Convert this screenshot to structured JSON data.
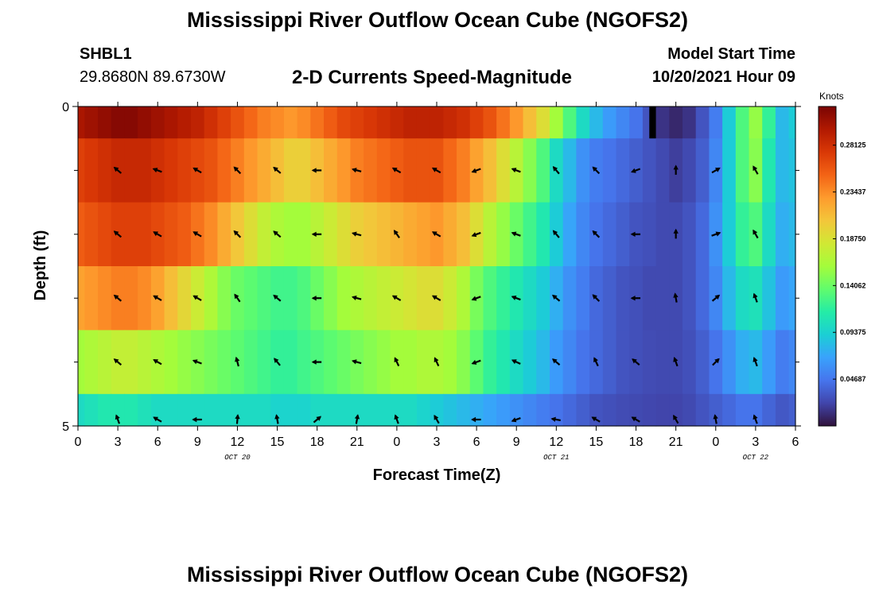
{
  "header": {
    "title": "Mississippi River Outflow Ocean Cube (NGOFS2)",
    "station_name": "SHBL1",
    "station_coords": "29.8680N  89.6730W",
    "subtitle": "2-D Currents Speed-Magnitude",
    "model_start_label": "Model Start Time",
    "model_start_time": "10/20/2021 Hour 09"
  },
  "footer": {
    "next_title": "Mississippi River Outflow Ocean Cube (NGOFS2)"
  },
  "chart_data": {
    "type": "heatmap",
    "title": "2-D Currents Speed-Magnitude",
    "xlabel": "Forecast Time(Z)",
    "ylabel": "Depth (ft)",
    "x_tick_labels": [
      "0",
      "3",
      "6",
      "9",
      "12",
      "15",
      "18",
      "21",
      "0",
      "3",
      "6",
      "9",
      "12",
      "15",
      "18",
      "21",
      "0",
      "3",
      "6"
    ],
    "date_labels": [
      {
        "label": "OCT 20",
        "hour": 12
      },
      {
        "label": "OCT 21",
        "hour": 36
      },
      {
        "label": "OCT 22",
        "hour": 51
      }
    ],
    "y_tick_labels": [
      "0",
      "5"
    ],
    "xlim": [
      0,
      54
    ],
    "ylim": [
      0,
      5
    ],
    "colorbar": {
      "unit": "Knots",
      "tick_labels": [
        "0.28125",
        "0.23437",
        "0.18750",
        "0.14062",
        "0.09375",
        "0.04687"
      ],
      "tick_values": [
        0.28125,
        0.234375,
        0.1875,
        0.140625,
        0.09375,
        0.046875
      ],
      "range": [
        0.0,
        0.32
      ],
      "colors": [
        "#30123b",
        "#4145ab",
        "#4675ed",
        "#39a2fc",
        "#1bcfd4",
        "#24eca6",
        "#61fc6c",
        "#a4fc3b",
        "#d1e834",
        "#f3c63a",
        "#fe9b2d",
        "#f36315",
        "#d93806",
        "#b11901",
        "#7a0403"
      ]
    },
    "time_hours": [
      0,
      1,
      2,
      3,
      4,
      5,
      6,
      7,
      8,
      9,
      10,
      11,
      12,
      13,
      14,
      15,
      16,
      17,
      18,
      19,
      20,
      21,
      22,
      23,
      24,
      25,
      26,
      27,
      28,
      29,
      30,
      31,
      32,
      33,
      34,
      35,
      36,
      37,
      38,
      39,
      40,
      41,
      42,
      43,
      44,
      45,
      46,
      47,
      48,
      49,
      50,
      51,
      52,
      53,
      54
    ],
    "depth_levels": [
      {
        "name": "level-1",
        "range": [
          0.0,
          0.5
        ],
        "speeds": [
          0.3,
          0.305,
          0.31,
          0.315,
          0.315,
          0.31,
          0.305,
          0.3,
          0.295,
          0.29,
          0.28,
          0.27,
          0.26,
          0.25,
          0.24,
          0.235,
          0.23,
          0.235,
          0.245,
          0.255,
          0.265,
          0.27,
          0.275,
          0.28,
          0.285,
          0.29,
          0.29,
          0.29,
          0.285,
          0.28,
          0.27,
          0.26,
          0.245,
          0.23,
          0.21,
          0.19,
          0.16,
          0.13,
          0.1,
          0.08,
          0.065,
          0.055,
          0.045,
          0.03,
          0.015,
          0.01,
          0.015,
          0.03,
          0.05,
          0.09,
          0.13,
          0.155,
          0.12,
          0.08,
          0.09
        ]
      },
      {
        "name": "level-2",
        "range": [
          0.5,
          1.5
        ],
        "speeds": [
          0.27,
          0.275,
          0.28,
          0.285,
          0.285,
          0.285,
          0.28,
          0.275,
          0.27,
          0.265,
          0.26,
          0.25,
          0.24,
          0.23,
          0.22,
          0.21,
          0.2,
          0.2,
          0.21,
          0.22,
          0.23,
          0.24,
          0.245,
          0.25,
          0.255,
          0.26,
          0.26,
          0.26,
          0.25,
          0.24,
          0.225,
          0.21,
          0.19,
          0.17,
          0.15,
          0.13,
          0.1,
          0.08,
          0.06,
          0.05,
          0.045,
          0.04,
          0.035,
          0.03,
          0.025,
          0.02,
          0.025,
          0.035,
          0.055,
          0.09,
          0.13,
          0.15,
          0.11,
          0.08,
          0.085
        ]
      },
      {
        "name": "level-3",
        "range": [
          1.5,
          2.5
        ],
        "speeds": [
          0.255,
          0.26,
          0.265,
          0.27,
          0.27,
          0.27,
          0.265,
          0.26,
          0.255,
          0.245,
          0.235,
          0.22,
          0.205,
          0.19,
          0.175,
          0.165,
          0.16,
          0.16,
          0.17,
          0.18,
          0.19,
          0.2,
          0.205,
          0.21,
          0.215,
          0.22,
          0.225,
          0.23,
          0.22,
          0.21,
          0.19,
          0.17,
          0.155,
          0.14,
          0.125,
          0.11,
          0.09,
          0.07,
          0.055,
          0.045,
          0.04,
          0.035,
          0.03,
          0.028,
          0.025,
          0.025,
          0.03,
          0.04,
          0.06,
          0.09,
          0.12,
          0.13,
          0.1,
          0.075,
          0.08
        ]
      },
      {
        "name": "level-4",
        "range": [
          2.5,
          3.5
        ],
        "speeds": [
          0.225,
          0.23,
          0.235,
          0.24,
          0.24,
          0.235,
          0.225,
          0.21,
          0.195,
          0.18,
          0.165,
          0.15,
          0.14,
          0.135,
          0.13,
          0.125,
          0.125,
          0.13,
          0.14,
          0.15,
          0.16,
          0.165,
          0.17,
          0.175,
          0.18,
          0.185,
          0.19,
          0.19,
          0.18,
          0.165,
          0.145,
          0.13,
          0.12,
          0.11,
          0.1,
          0.09,
          0.075,
          0.06,
          0.05,
          0.04,
          0.035,
          0.03,
          0.028,
          0.025,
          0.025,
          0.025,
          0.03,
          0.04,
          0.055,
          0.08,
          0.1,
          0.105,
          0.085,
          0.065,
          0.07
        ]
      },
      {
        "name": "level-5",
        "range": [
          3.5,
          4.5
        ],
        "speeds": [
          0.16,
          0.165,
          0.17,
          0.175,
          0.175,
          0.17,
          0.165,
          0.16,
          0.155,
          0.15,
          0.145,
          0.14,
          0.135,
          0.13,
          0.125,
          0.12,
          0.12,
          0.125,
          0.13,
          0.135,
          0.14,
          0.145,
          0.15,
          0.155,
          0.16,
          0.16,
          0.165,
          0.165,
          0.16,
          0.15,
          0.135,
          0.12,
          0.11,
          0.1,
          0.09,
          0.08,
          0.065,
          0.055,
          0.045,
          0.04,
          0.035,
          0.03,
          0.028,
          0.026,
          0.025,
          0.025,
          0.028,
          0.035,
          0.045,
          0.06,
          0.075,
          0.08,
          0.065,
          0.05,
          0.055
        ]
      },
      {
        "name": "level-6",
        "range": [
          4.5,
          5.0
        ],
        "speeds": [
          0.1,
          0.105,
          0.11,
          0.11,
          0.11,
          0.105,
          0.1,
          0.1,
          0.1,
          0.1,
          0.1,
          0.1,
          0.1,
          0.1,
          0.1,
          0.095,
          0.095,
          0.095,
          0.1,
          0.1,
          0.1,
          0.1,
          0.1,
          0.1,
          0.1,
          0.1,
          0.095,
          0.09,
          0.085,
          0.08,
          0.075,
          0.07,
          0.065,
          0.06,
          0.055,
          0.05,
          0.045,
          0.04,
          0.035,
          0.03,
          0.028,
          0.026,
          0.025,
          0.024,
          0.023,
          0.023,
          0.025,
          0.03,
          0.035,
          0.04,
          0.045,
          0.045,
          0.038,
          0.032,
          0.035
        ]
      }
    ],
    "vectors": {
      "hours": [
        3,
        6,
        9,
        12,
        15,
        18,
        21,
        24,
        27,
        30,
        33,
        36,
        39,
        42,
        45,
        48,
        51
      ],
      "rows": [
        {
          "depth": 1.0,
          "angles": [
            140,
            160,
            150,
            135,
            140,
            180,
            165,
            150,
            150,
            200,
            160,
            130,
            135,
            200,
            90,
            30,
            120
          ]
        },
        {
          "depth": 2.0,
          "angles": [
            140,
            150,
            150,
            135,
            140,
            180,
            165,
            125,
            150,
            200,
            160,
            130,
            135,
            180,
            90,
            20,
            120
          ]
        },
        {
          "depth": 3.0,
          "angles": [
            140,
            150,
            150,
            125,
            140,
            180,
            165,
            150,
            150,
            200,
            160,
            140,
            135,
            180,
            100,
            40,
            110
          ]
        },
        {
          "depth": 4.0,
          "angles": [
            140,
            150,
            160,
            105,
            130,
            180,
            165,
            115,
            115,
            200,
            155,
            140,
            115,
            140,
            110,
            45,
            110
          ]
        },
        {
          "depth": 4.9,
          "angles": [
            110,
            150,
            180,
            85,
            100,
            40,
            80,
            110,
            120,
            180,
            200,
            170,
            150,
            150,
            120,
            100,
            110
          ]
        }
      ]
    },
    "missing_blocks": [
      {
        "hour_start": 43,
        "hour_end": 43.5,
        "depth_start": 0.0,
        "depth_end": 0.5
      }
    ]
  }
}
